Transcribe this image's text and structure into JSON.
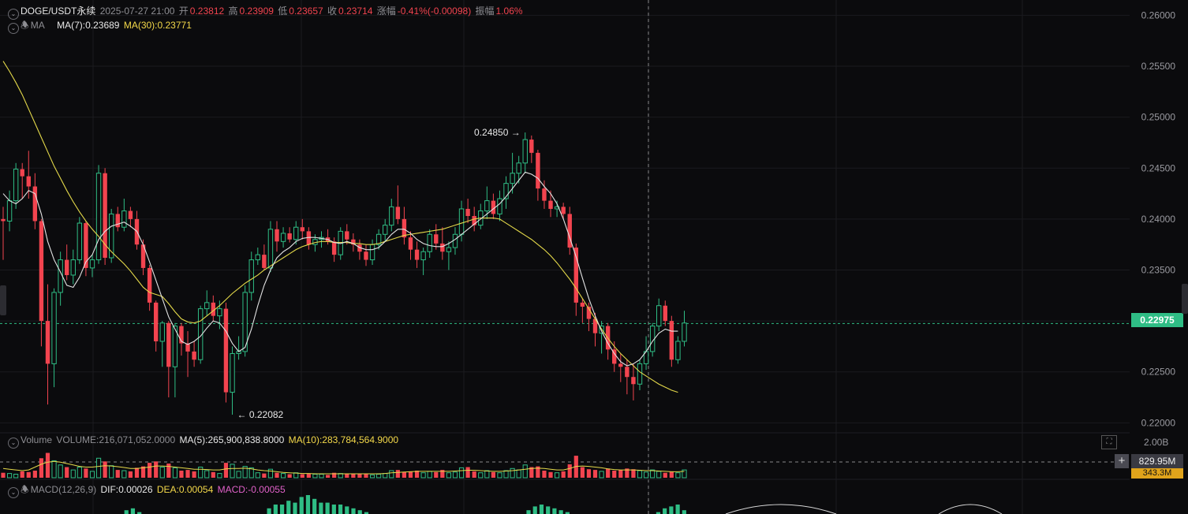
{
  "header": {
    "symbol": "DOGE/USDT永续",
    "datetime": "2025-07-27 21:00",
    "open_label": "开",
    "open": "0.23812",
    "high_label": "高",
    "high": "0.23909",
    "low_label": "低",
    "low": "0.23657",
    "close_label": "收",
    "close": "0.23714",
    "change_label": "涨幅",
    "change": "-0.41%(-0.00098)",
    "amp_label": "振幅",
    "amp": "1.06%"
  },
  "ma_legend": {
    "name": "MA",
    "ma7": "MA(7):0.23689",
    "ma30": "MA(30):0.23771"
  },
  "volume_legend": {
    "name": "Volume",
    "volume": "VOLUME:216,071,052.0000",
    "ma5": "MA(5):265,900,838.8000",
    "ma10": "MA(10):283,784,564.9000"
  },
  "macd_legend": {
    "name": "MACD(12,26,9)",
    "dif": "DIF:0.00026",
    "dea": "DEA:0.00054",
    "macd": "MACD:-0.00055"
  },
  "price_axis": [
    "0.26000",
    "0.25500",
    "0.25000",
    "0.24500",
    "0.24000",
    "0.23500",
    "0.23000",
    "0.22500",
    "0.22000"
  ],
  "volume_axis": {
    "top": "2.00B",
    "hover": "829.95M",
    "ma": "343.3M"
  },
  "current_price": "0.22975",
  "annotations": {
    "high": "0.24850",
    "low": "0.22082"
  },
  "colors": {
    "up": "#2fbd85",
    "down": "#f2444f",
    "ma7": "#e3e3e3",
    "ma30": "#e4d94a",
    "background": "#0b0b0d"
  },
  "chart_data": {
    "type": "candlestick",
    "y_range": [
      0.2191,
      0.2615
    ],
    "current_price": 0.22975,
    "candles": [
      [
        0.24,
        0.2412,
        0.236,
        0.2398
      ],
      [
        0.2398,
        0.2428,
        0.2388,
        0.2418
      ],
      [
        0.2418,
        0.2455,
        0.241,
        0.2449
      ],
      [
        0.2449,
        0.2455,
        0.242,
        0.2442
      ],
      [
        0.2442,
        0.2467,
        0.242,
        0.2432
      ],
      [
        0.2432,
        0.2445,
        0.239,
        0.2398
      ],
      [
        0.2398,
        0.24,
        0.2275,
        0.23
      ],
      [
        0.23,
        0.2336,
        0.2218,
        0.2258
      ],
      [
        0.2258,
        0.2332,
        0.2235,
        0.2328
      ],
      [
        0.2328,
        0.2368,
        0.2315,
        0.236
      ],
      [
        0.236,
        0.2375,
        0.234,
        0.2345
      ],
      [
        0.2345,
        0.237,
        0.2336,
        0.236
      ],
      [
        0.236,
        0.2402,
        0.2356,
        0.2396
      ],
      [
        0.2396,
        0.2398,
        0.2344,
        0.2352
      ],
      [
        0.2352,
        0.2365,
        0.2343,
        0.236
      ],
      [
        0.236,
        0.2453,
        0.2356,
        0.2445
      ],
      [
        0.2445,
        0.245,
        0.2355,
        0.2362
      ],
      [
        0.2362,
        0.241,
        0.2357,
        0.2405
      ],
      [
        0.2405,
        0.2412,
        0.2388,
        0.2392
      ],
      [
        0.2392,
        0.242,
        0.2388,
        0.2408
      ],
      [
        0.2408,
        0.2412,
        0.2392,
        0.24
      ],
      [
        0.24,
        0.2408,
        0.237,
        0.2375
      ],
      [
        0.2375,
        0.238,
        0.2345,
        0.2352
      ],
      [
        0.2352,
        0.2355,
        0.231,
        0.2318
      ],
      [
        0.2318,
        0.232,
        0.227,
        0.228
      ],
      [
        0.228,
        0.23,
        0.2255,
        0.2298
      ],
      [
        0.2298,
        0.23,
        0.2225,
        0.2255
      ],
      [
        0.2255,
        0.2298,
        0.2225,
        0.2295
      ],
      [
        0.2295,
        0.2298,
        0.2266,
        0.2278
      ],
      [
        0.2278,
        0.229,
        0.2245,
        0.227
      ],
      [
        0.227,
        0.228,
        0.2255,
        0.2262
      ],
      [
        0.2262,
        0.2315,
        0.2258,
        0.2312
      ],
      [
        0.2312,
        0.233,
        0.2305,
        0.2318
      ],
      [
        0.2318,
        0.2325,
        0.23,
        0.2305
      ],
      [
        0.2305,
        0.232,
        0.2292,
        0.2312
      ],
      [
        0.2312,
        0.2318,
        0.222,
        0.223
      ],
      [
        0.223,
        0.2275,
        0.2208,
        0.2268
      ],
      [
        0.2268,
        0.2285,
        0.2262,
        0.227
      ],
      [
        0.227,
        0.2335,
        0.2265,
        0.2328
      ],
      [
        0.2328,
        0.2368,
        0.232,
        0.236
      ],
      [
        0.236,
        0.2372,
        0.2355,
        0.2365
      ],
      [
        0.2365,
        0.2375,
        0.235,
        0.2352
      ],
      [
        0.2352,
        0.2398,
        0.2348,
        0.239
      ],
      [
        0.239,
        0.2398,
        0.2368,
        0.2378
      ],
      [
        0.2378,
        0.2392,
        0.2372,
        0.2386
      ],
      [
        0.2386,
        0.2392,
        0.2377,
        0.238
      ],
      [
        0.238,
        0.2398,
        0.2375,
        0.2392
      ],
      [
        0.2392,
        0.24,
        0.238,
        0.2388
      ],
      [
        0.2388,
        0.2392,
        0.237,
        0.2375
      ],
      [
        0.2375,
        0.2385,
        0.2368,
        0.238
      ],
      [
        0.238,
        0.2388,
        0.2372,
        0.2382
      ],
      [
        0.2382,
        0.239,
        0.2375,
        0.2378
      ],
      [
        0.2378,
        0.2382,
        0.2358,
        0.2365
      ],
      [
        0.2365,
        0.2392,
        0.236,
        0.2388
      ],
      [
        0.2388,
        0.2395,
        0.2375,
        0.238
      ],
      [
        0.238,
        0.2386,
        0.2368,
        0.2375
      ],
      [
        0.2375,
        0.238,
        0.236,
        0.2368
      ],
      [
        0.2368,
        0.2375,
        0.2354,
        0.236
      ],
      [
        0.236,
        0.238,
        0.2355,
        0.2375
      ],
      [
        0.2375,
        0.239,
        0.237,
        0.2385
      ],
      [
        0.2385,
        0.24,
        0.2378,
        0.2394
      ],
      [
        0.2394,
        0.242,
        0.2388,
        0.2412
      ],
      [
        0.2412,
        0.2433,
        0.2395,
        0.24
      ],
      [
        0.24,
        0.2412,
        0.2375,
        0.2382
      ],
      [
        0.2382,
        0.2388,
        0.236,
        0.237
      ],
      [
        0.237,
        0.2378,
        0.2352,
        0.236
      ],
      [
        0.236,
        0.2372,
        0.2345,
        0.2368
      ],
      [
        0.2368,
        0.239,
        0.2362,
        0.2385
      ],
      [
        0.2385,
        0.2395,
        0.237,
        0.2376
      ],
      [
        0.2376,
        0.2392,
        0.236,
        0.2368
      ],
      [
        0.2368,
        0.2378,
        0.235,
        0.2372
      ],
      [
        0.2372,
        0.2392,
        0.2365,
        0.2385
      ],
      [
        0.2385,
        0.2418,
        0.2378,
        0.241
      ],
      [
        0.241,
        0.242,
        0.2396,
        0.2403
      ],
      [
        0.2403,
        0.2412,
        0.2388,
        0.2394
      ],
      [
        0.2394,
        0.2415,
        0.239,
        0.2408
      ],
      [
        0.2408,
        0.2432,
        0.24,
        0.2418
      ],
      [
        0.2418,
        0.2425,
        0.24,
        0.2405
      ],
      [
        0.2405,
        0.2428,
        0.2398,
        0.242
      ],
      [
        0.242,
        0.2442,
        0.241,
        0.2435
      ],
      [
        0.2435,
        0.2465,
        0.2425,
        0.2445
      ],
      [
        0.2445,
        0.2462,
        0.2435,
        0.2455
      ],
      [
        0.2455,
        0.2485,
        0.2445,
        0.2478
      ],
      [
        0.2478,
        0.2482,
        0.2455,
        0.2465
      ],
      [
        0.2465,
        0.2468,
        0.2418,
        0.243
      ],
      [
        0.243,
        0.2438,
        0.241,
        0.2418
      ],
      [
        0.2418,
        0.2428,
        0.2402,
        0.241
      ],
      [
        0.241,
        0.2418,
        0.2402,
        0.2412
      ],
      [
        0.2412,
        0.2416,
        0.24,
        0.2405
      ],
      [
        0.2405,
        0.2412,
        0.2365,
        0.2372
      ],
      [
        0.2372,
        0.2376,
        0.2305,
        0.2318
      ],
      [
        0.2318,
        0.2322,
        0.2298,
        0.2314
      ],
      [
        0.2314,
        0.2318,
        0.229,
        0.2302
      ],
      [
        0.2302,
        0.2308,
        0.2275,
        0.2288
      ],
      [
        0.2288,
        0.23,
        0.2268,
        0.2295
      ],
      [
        0.2295,
        0.2298,
        0.2262,
        0.2272
      ],
      [
        0.2272,
        0.228,
        0.225,
        0.2258
      ],
      [
        0.2258,
        0.2268,
        0.224,
        0.2255
      ],
      [
        0.2255,
        0.2262,
        0.2228,
        0.2245
      ],
      [
        0.2245,
        0.2258,
        0.2222,
        0.2238
      ],
      [
        0.2238,
        0.2262,
        0.2232,
        0.2258
      ],
      [
        0.2258,
        0.2285,
        0.2252,
        0.227
      ],
      [
        0.227,
        0.2298,
        0.2265,
        0.2295
      ],
      [
        0.2295,
        0.2322,
        0.229,
        0.2315
      ],
      [
        0.2315,
        0.232,
        0.2295,
        0.23
      ],
      [
        0.23,
        0.2305,
        0.2255,
        0.2262
      ],
      [
        0.2262,
        0.2285,
        0.2258,
        0.228
      ],
      [
        0.228,
        0.231,
        0.2275,
        0.2298
      ]
    ],
    "ma7": [
      0.2425,
      0.2418,
      0.2415,
      0.242,
      0.2428,
      0.2425,
      0.2405,
      0.2378,
      0.236,
      0.2348,
      0.2335,
      0.2333,
      0.2343,
      0.2358,
      0.2365,
      0.238,
      0.2388,
      0.2393,
      0.2395,
      0.2397,
      0.2393,
      0.2388,
      0.2375,
      0.2358,
      0.234,
      0.2322,
      0.2304,
      0.2292,
      0.228,
      0.2277,
      0.228,
      0.2285,
      0.2293,
      0.23,
      0.2298,
      0.229,
      0.2278,
      0.227,
      0.2274,
      0.2292,
      0.2315,
      0.2335,
      0.235,
      0.2362,
      0.2368,
      0.2372,
      0.2378,
      0.2381,
      0.2382,
      0.2382,
      0.2381,
      0.238,
      0.2377,
      0.2376,
      0.2378,
      0.2376,
      0.2372,
      0.237,
      0.237,
      0.2372,
      0.2378,
      0.2385,
      0.239,
      0.239,
      0.2386,
      0.238,
      0.2376,
      0.2374,
      0.2373,
      0.2373,
      0.2376,
      0.238,
      0.2385,
      0.239,
      0.2395,
      0.24,
      0.2405,
      0.241,
      0.2415,
      0.2422,
      0.243,
      0.2438,
      0.2446,
      0.2444,
      0.244,
      0.2432,
      0.2425,
      0.2415,
      0.24,
      0.2382,
      0.2363,
      0.2342,
      0.2322,
      0.2305,
      0.229,
      0.2278,
      0.2268,
      0.226,
      0.2256,
      0.2258,
      0.2262,
      0.227,
      0.228,
      0.2288,
      0.2292,
      0.229,
      0.229
    ],
    "ma30": [
      0.2555,
      0.2545,
      0.2534,
      0.2522,
      0.2508,
      0.2494,
      0.248,
      0.2466,
      0.2452,
      0.244,
      0.2428,
      0.2417,
      0.2407,
      0.2398,
      0.239,
      0.2383,
      0.2375,
      0.2368,
      0.2362,
      0.2356,
      0.2349,
      0.2341,
      0.2333,
      0.2328,
      0.2326,
      0.2324,
      0.2317,
      0.2309,
      0.2302,
      0.2299,
      0.2298,
      0.23,
      0.2305,
      0.231,
      0.2315,
      0.2321,
      0.2327,
      0.2332,
      0.2337,
      0.2341,
      0.2345,
      0.235,
      0.2354,
      0.2358,
      0.2362,
      0.2366,
      0.237,
      0.2373,
      0.2375,
      0.2377,
      0.2378,
      0.2378,
      0.2377,
      0.2377,
      0.2377,
      0.2376,
      0.2376,
      0.2375,
      0.2375,
      0.2376,
      0.2378,
      0.238,
      0.2382,
      0.2384,
      0.2385,
      0.2386,
      0.2387,
      0.2388,
      0.2389,
      0.239,
      0.2392,
      0.2394,
      0.2396,
      0.2398,
      0.24,
      0.2401,
      0.2401,
      0.2401,
      0.24,
      0.2396,
      0.2392,
      0.2388,
      0.2384,
      0.238,
      0.2375,
      0.237,
      0.2364,
      0.2357,
      0.2349,
      0.2341,
      0.2332,
      0.2322,
      0.2312,
      0.2302,
      0.2292,
      0.2283,
      0.2275,
      0.2268,
      0.2262,
      0.2256,
      0.225,
      0.2246,
      0.2242,
      0.2238,
      0.2235,
      0.2232,
      0.223
    ],
    "volume": [
      0.14,
      0.12,
      0.1,
      0.18,
      0.16,
      0.2,
      0.55,
      0.7,
      0.48,
      0.36,
      0.3,
      0.22,
      0.3,
      0.26,
      0.18,
      0.55,
      0.46,
      0.34,
      0.22,
      0.2,
      0.18,
      0.28,
      0.32,
      0.42,
      0.46,
      0.3,
      0.4,
      0.28,
      0.2,
      0.22,
      0.18,
      0.3,
      0.2,
      0.16,
      0.12,
      0.42,
      0.38,
      0.18,
      0.32,
      0.28,
      0.14,
      0.12,
      0.24,
      0.14,
      0.12,
      0.1,
      0.14,
      0.1,
      0.12,
      0.1,
      0.1,
      0.08,
      0.14,
      0.12,
      0.1,
      0.12,
      0.1,
      0.12,
      0.08,
      0.1,
      0.12,
      0.2,
      0.22,
      0.16,
      0.18,
      0.2,
      0.14,
      0.18,
      0.16,
      0.22,
      0.14,
      0.16,
      0.28,
      0.3,
      0.18,
      0.14,
      0.2,
      0.16,
      0.14,
      0.2,
      0.26,
      0.22,
      0.36,
      0.3,
      0.32,
      0.2,
      0.16,
      0.14,
      0.18,
      0.38,
      0.62,
      0.3,
      0.24,
      0.22,
      0.18,
      0.26,
      0.2,
      0.22,
      0.26,
      0.24,
      0.2,
      0.16,
      0.22,
      0.18,
      0.14,
      0.18,
      0.14,
      0.22
    ],
    "volume_ma": [
      0.26,
      0.24,
      0.22,
      0.2,
      0.22,
      0.3,
      0.38,
      0.44,
      0.46,
      0.44,
      0.4,
      0.36,
      0.32,
      0.3,
      0.3,
      0.32,
      0.34,
      0.33,
      0.31,
      0.29,
      0.26,
      0.26,
      0.28,
      0.3,
      0.33,
      0.33,
      0.32,
      0.3,
      0.28,
      0.26,
      0.24,
      0.24,
      0.23,
      0.22,
      0.22,
      0.25,
      0.26,
      0.26,
      0.27,
      0.25,
      0.22,
      0.2,
      0.19,
      0.17,
      0.15,
      0.14,
      0.13,
      0.12,
      0.12,
      0.11,
      0.11,
      0.11,
      0.11,
      0.11,
      0.11,
      0.11,
      0.11,
      0.11,
      0.11,
      0.11,
      0.12,
      0.14,
      0.15,
      0.16,
      0.17,
      0.18,
      0.18,
      0.18,
      0.18,
      0.18,
      0.18,
      0.19,
      0.2,
      0.21,
      0.21,
      0.2,
      0.19,
      0.18,
      0.18,
      0.19,
      0.2,
      0.22,
      0.24,
      0.26,
      0.27,
      0.26,
      0.24,
      0.22,
      0.22,
      0.26,
      0.32,
      0.33,
      0.32,
      0.3,
      0.28,
      0.25,
      0.23,
      0.22,
      0.22,
      0.22,
      0.21,
      0.2,
      0.2,
      0.19,
      0.18,
      0.17,
      0.17,
      0.18
    ],
    "macd_hist": [
      0,
      0,
      0,
      0,
      0,
      0,
      0,
      0,
      0,
      0,
      0,
      0,
      0,
      0,
      0,
      0,
      0,
      0,
      0,
      0.2,
      0.3,
      0.1,
      0,
      0,
      0,
      0,
      0,
      0,
      0,
      0,
      0,
      0,
      0,
      0,
      0,
      0,
      0,
      0,
      0,
      0,
      0,
      0.3,
      0.5,
      0.5,
      0.7,
      0.6,
      0.9,
      1,
      0.8,
      0.6,
      0.6,
      0.5,
      0.5,
      0.4,
      0.3,
      0.2,
      0.1,
      0,
      0,
      0,
      0,
      0,
      0,
      0,
      0,
      0,
      0,
      0,
      0,
      0,
      0,
      0,
      0,
      0,
      0,
      0,
      0,
      0,
      0,
      0,
      0,
      0.2,
      0.4,
      0.5,
      0.4,
      0.3,
      0.2,
      0.1,
      0,
      0,
      0,
      0,
      0,
      0,
      0,
      0,
      0,
      0,
      0,
      0,
      0,
      0.1,
      0.3,
      0.4,
      0.5,
      0.2
    ],
    "annotations": [
      {
        "label": "0.24850",
        "price": 0.2485,
        "candle": 82,
        "side": "left"
      },
      {
        "label": "0.22082",
        "price": 0.22082,
        "candle": 36,
        "side": "right"
      }
    ]
  }
}
